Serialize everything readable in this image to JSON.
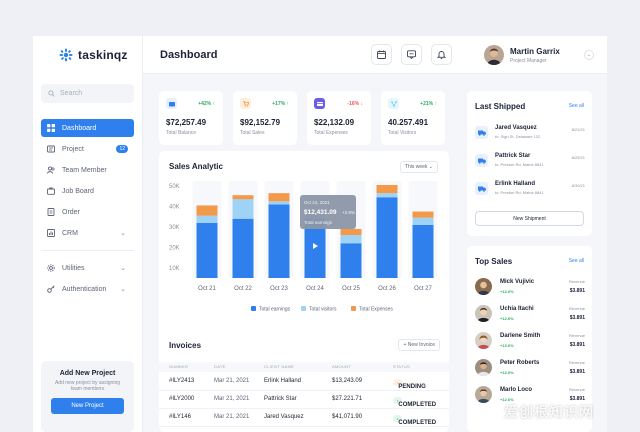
{
  "app": {
    "name": "taskinqz"
  },
  "search": {
    "placeholder": "Search"
  },
  "sidebar": {
    "items": [
      {
        "label": "Dashboard",
        "icon": "grid-icon"
      },
      {
        "label": "Project",
        "icon": "folder-icon",
        "badge": "12"
      },
      {
        "label": "Team Member",
        "icon": "users-icon"
      },
      {
        "label": "Job Board",
        "icon": "briefcase-icon"
      },
      {
        "label": "Order",
        "icon": "receipt-icon"
      },
      {
        "label": "CRM",
        "icon": "chart-icon"
      }
    ],
    "secondary": [
      {
        "label": "Utilities",
        "icon": "settings-icon"
      },
      {
        "label": "Authentication",
        "icon": "key-icon"
      }
    ],
    "promo": {
      "title": "Add New Project",
      "subtitle": "Add new project by assigning team members",
      "button": "New Project"
    }
  },
  "header": {
    "title": "Dashboard",
    "user": {
      "name": "Martin Garrix",
      "role": "Project Manager"
    }
  },
  "stats": [
    {
      "value": "$72,257.49",
      "label": "Total Balance",
      "delta": "+42%",
      "trend": "up",
      "color": "#2f80ed"
    },
    {
      "value": "$92,152.79",
      "label": "Total Sales",
      "delta": "+17%",
      "trend": "up",
      "color": "#f2994a"
    },
    {
      "value": "$22,132.09",
      "label": "Total Expenses",
      "delta": "-16%",
      "trend": "down",
      "color": "#6c5ce7"
    },
    {
      "value": "40.257.491",
      "label": "Total Visitors",
      "delta": "+21%",
      "trend": "up",
      "color": "#56ccf2"
    }
  ],
  "chart": {
    "title": "Sales Analytic",
    "filter": "This week",
    "tooltip": {
      "date": "Oct 24, 2021",
      "value": "$12,431.09",
      "delta": "+2.8%",
      "label": "Total earnings"
    }
  },
  "chart_data": {
    "type": "bar",
    "stacked": true,
    "categories": [
      "Oct 21",
      "Oct 22",
      "Oct 23",
      "Oct 24",
      "Oct 25",
      "Oct 26",
      "Oct 27"
    ],
    "y_ticks": [
      "50K",
      "40K",
      "30K",
      "20K",
      "10K"
    ],
    "ylim": [
      5000,
      50000
    ],
    "series": [
      {
        "name": "Total earnings",
        "color": "#2f80ed",
        "values": [
          27000,
          29000,
          36000,
          29000,
          17000,
          39500,
          26000
        ]
      },
      {
        "name": "Total visitors",
        "color": "#9fd3f5",
        "values": [
          3500,
          9500,
          1500,
          4000,
          4000,
          2000,
          3500
        ]
      },
      {
        "name": "Total Expenses",
        "color": "#f2994a",
        "values": [
          5000,
          2000,
          4000,
          0,
          3000,
          4000,
          3000
        ]
      }
    ],
    "legend_position": "bottom",
    "grid": false
  },
  "invoices": {
    "title": "Invoices",
    "button": "New Invoice",
    "columns": [
      "NUMBER",
      "DATE",
      "CLIENT NAME",
      "AMOUNT",
      "STATUS"
    ],
    "rows": [
      {
        "number": "#ILY2413",
        "date": "Mar 21, 2021",
        "client": "Erlink Halland",
        "amount": "$13,243.09",
        "status": "PENDING",
        "status_color": "#f2994a",
        "status_bg": "#fdf0e4"
      },
      {
        "number": "#ILY2000",
        "date": "Mar 21, 2021",
        "client": "Pattrick Star",
        "amount": "$27.221.71",
        "status": "COMPLETED",
        "status_color": "#27ae60",
        "status_bg": "#e3f6ea"
      },
      {
        "number": "#ILY146",
        "date": "Mar 21, 2021",
        "client": "Jared Vasquez",
        "amount": "$41,071.90",
        "status": "COMPLETED",
        "status_color": "#27ae60",
        "status_bg": "#e3f6ea"
      }
    ]
  },
  "shipped": {
    "title": "Last Shipped",
    "link": "See all",
    "items": [
      {
        "name": "Jared Vasquez",
        "address": "to: Sign St, Delaware 122",
        "date": "8/21/21"
      },
      {
        "name": "Pattrick Star",
        "address": "to: Preston Rd, Maine 8841",
        "date": "8/25/21"
      },
      {
        "name": "Erlink Halland",
        "address": "to: Preston Rd, Maine 8841",
        "date": "8/30/21"
      }
    ],
    "button": "New Shipment"
  },
  "top_sales": {
    "title": "Top Sales",
    "link": "See all",
    "items": [
      {
        "name": "Mick Vujivic",
        "delta": "+13.6%",
        "revenue_label": "Revenue",
        "revenue": "$3.891"
      },
      {
        "name": "Uchia Itachi",
        "delta": "+12.6%",
        "revenue_label": "Revenue",
        "revenue": "$3.891"
      },
      {
        "name": "Darlene Smith",
        "delta": "+13.6%",
        "revenue_label": "Revenue",
        "revenue": "$3.891"
      },
      {
        "name": "Peter Roberts",
        "delta": "+13.6%",
        "revenue_label": "Revenue",
        "revenue": "$3.891"
      },
      {
        "name": "Marlo Loco",
        "delta": "+12.6%",
        "revenue_label": "Revenue",
        "revenue": "$3.891"
      }
    ]
  },
  "watermark": "爱创根知识网"
}
